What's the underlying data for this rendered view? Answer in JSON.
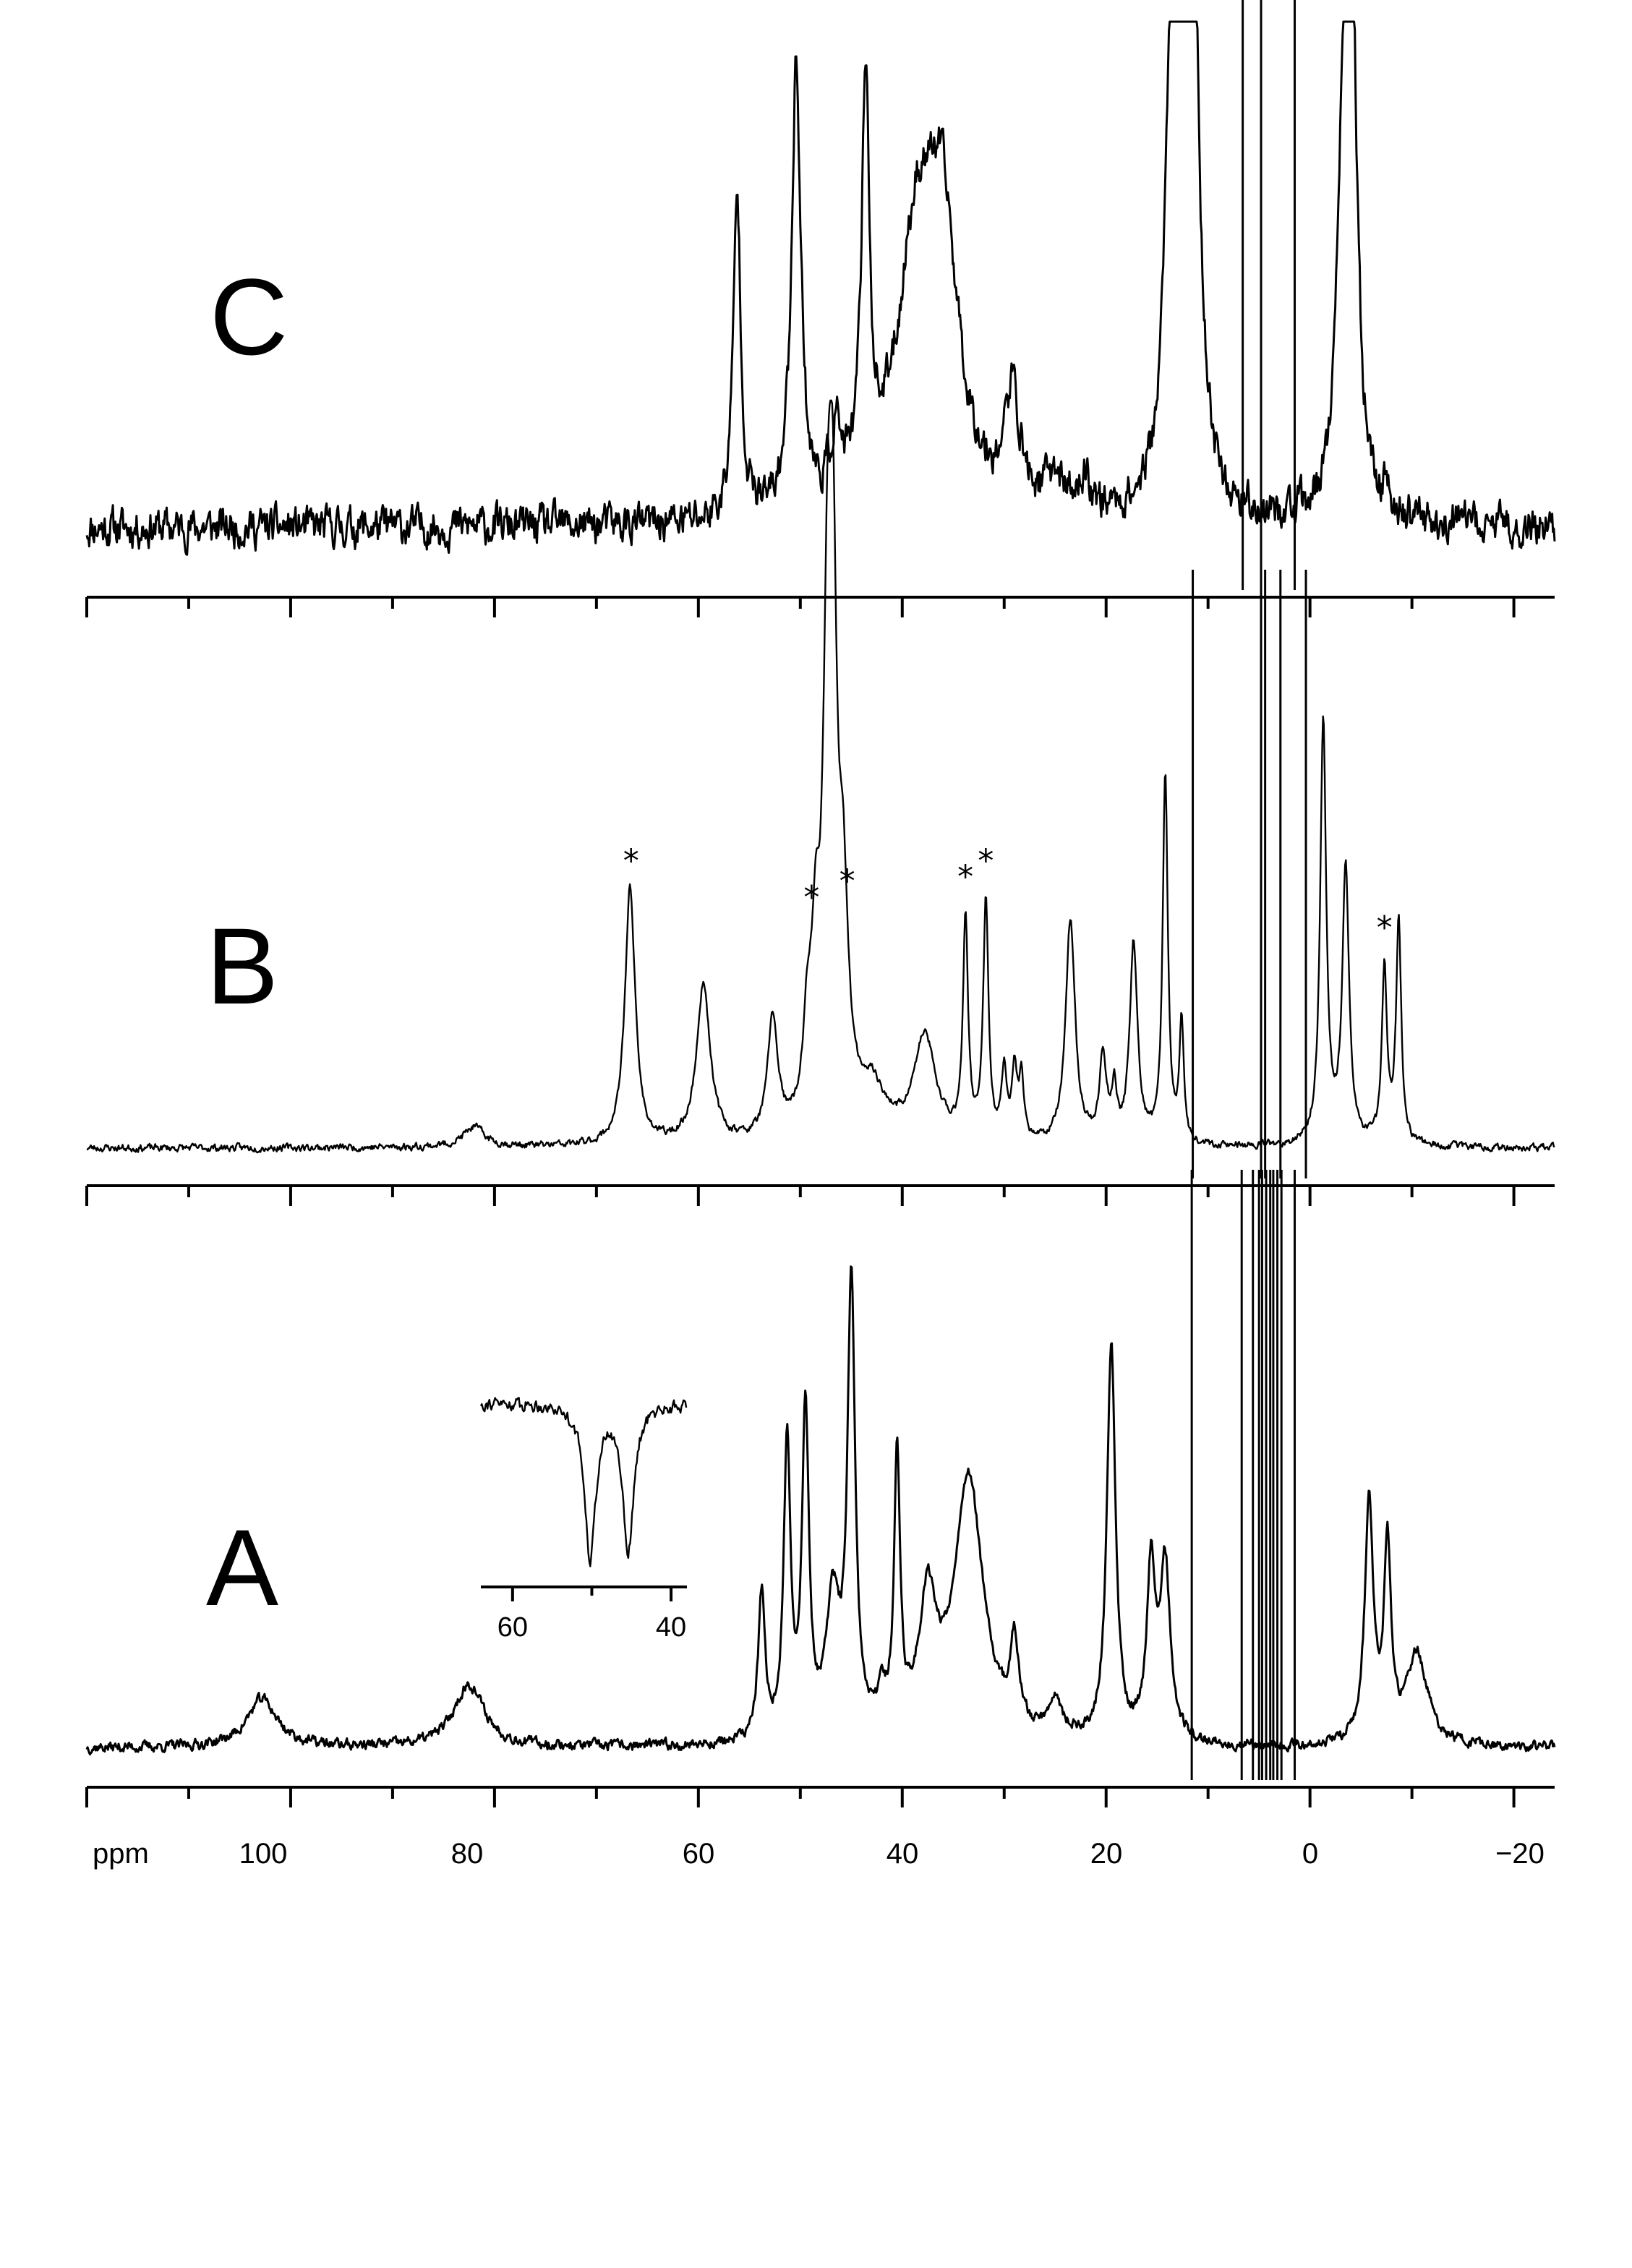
{
  "chart_data": [
    {
      "type": "line",
      "panel": "C",
      "x_unit": "ppm",
      "xlim": [
        120,
        -24
      ],
      "x_reversed": true,
      "axis_ticks_major": [
        120,
        100,
        80,
        60,
        40,
        20,
        0,
        -20
      ],
      "axis_ticks_minor": [
        110,
        90,
        70,
        50,
        30,
        10,
        -10
      ],
      "tick_labels_shown": false,
      "baseline_noise": 0.06,
      "baseline_dip": -0.02,
      "peaks": [
        {
          "ppm": 56.2,
          "height": 0.62,
          "width": 0.45
        },
        {
          "ppm": 50.4,
          "height": 0.87,
          "width": 0.55
        },
        {
          "ppm": 46.5,
          "height": 0.13,
          "width": 0.6
        },
        {
          "ppm": 43.6,
          "height": 0.79,
          "width": 0.45
        },
        {
          "ppm": 38.5,
          "height": 0.52,
          "width": 2.4
        },
        {
          "ppm": 36.0,
          "height": 0.45,
          "width": 1.8
        },
        {
          "ppm": 29.2,
          "height": 0.21,
          "width": 0.9
        },
        {
          "ppm": 25.0,
          "height": 0.07,
          "width": 1.0
        },
        {
          "ppm": 22.0,
          "height": 0.06,
          "width": 0.8
        },
        {
          "ppm": 13.7,
          "height": 0.62,
          "width": 0.6
        },
        {
          "ppm": 12.6,
          "height": 0.85,
          "width": 0.9
        },
        {
          "ppm": 11.5,
          "height": 0.96,
          "width": 0.7
        },
        {
          "ppm": -3.2,
          "height": 0.6,
          "width": 0.7
        },
        {
          "ppm": -4.1,
          "height": 0.98,
          "width": 0.6
        },
        {
          "ppm": -7.5,
          "height": 0.05,
          "width": 0.5
        }
      ],
      "truncated_lines_ppm": [
        6.6,
        4.8,
        1.5
      ],
      "annotations": []
    },
    {
      "type": "line",
      "panel": "B",
      "x_unit": "ppm",
      "xlim": [
        120,
        -24
      ],
      "x_reversed": true,
      "axis_ticks_major": [
        120,
        100,
        80,
        60,
        40,
        20,
        0,
        -20
      ],
      "axis_ticks_minor": [
        110,
        90,
        70,
        50,
        30,
        10,
        -10
      ],
      "tick_labels_shown": false,
      "baseline_noise": 0.012,
      "baseline_dip": -0.01,
      "peaks": [
        {
          "ppm": 82.0,
          "height": 0.04,
          "width": 1.3
        },
        {
          "ppm": 66.7,
          "height": 0.52,
          "width": 0.6
        },
        {
          "ppm": 59.5,
          "height": 0.32,
          "width": 0.8
        },
        {
          "ppm": 52.7,
          "height": 0.24,
          "width": 0.6
        },
        {
          "ppm": 49.3,
          "height": 0.17,
          "width": 0.5
        },
        {
          "ppm": 48.5,
          "height": 0.28,
          "width": 0.5
        },
        {
          "ppm": 47.3,
          "height": 0.93,
          "width": 0.55
        },
        {
          "ppm": 46.8,
          "height": 0.78,
          "width": 0.45
        },
        {
          "ppm": 45.8,
          "height": 0.4,
          "width": 0.6
        },
        {
          "ppm": 43.0,
          "height": 0.1,
          "width": 1.6
        },
        {
          "ppm": 37.8,
          "height": 0.21,
          "width": 1.3
        },
        {
          "ppm": 33.8,
          "height": 0.44,
          "width": 0.3
        },
        {
          "ppm": 31.8,
          "height": 0.48,
          "width": 0.3
        },
        {
          "ppm": 30.0,
          "height": 0.13,
          "width": 0.3
        },
        {
          "ppm": 29.0,
          "height": 0.14,
          "width": 0.3
        },
        {
          "ppm": 28.3,
          "height": 0.12,
          "width": 0.3
        },
        {
          "ppm": 23.5,
          "height": 0.45,
          "width": 0.55
        },
        {
          "ppm": 20.3,
          "height": 0.17,
          "width": 0.4
        },
        {
          "ppm": 19.2,
          "height": 0.1,
          "width": 0.3
        },
        {
          "ppm": 17.3,
          "height": 0.4,
          "width": 0.45
        },
        {
          "ppm": 14.2,
          "height": 0.74,
          "width": 0.3
        },
        {
          "ppm": 12.6,
          "height": 0.25,
          "width": 0.25
        },
        {
          "ppm": -1.3,
          "height": 0.85,
          "width": 0.35
        },
        {
          "ppm": -3.5,
          "height": 0.55,
          "width": 0.4
        },
        {
          "ppm": -7.3,
          "height": 0.35,
          "width": 0.3
        },
        {
          "ppm": -8.7,
          "height": 0.45,
          "width": 0.3
        }
      ],
      "truncated_lines_ppm": [
        11.5,
        4.8,
        4.4,
        2.9,
        0.4
      ],
      "annotations": [
        {
          "text": "*",
          "ppm": 66.6
        },
        {
          "text": "*",
          "ppm": 48.9
        },
        {
          "text": "*",
          "ppm": 45.4
        },
        {
          "text": "*",
          "ppm": 33.8
        },
        {
          "text": "*",
          "ppm": 31.8
        },
        {
          "text": "*",
          "ppm": -7.3
        }
      ]
    },
    {
      "type": "line",
      "panel": "A",
      "x_unit": "ppm",
      "xlim": [
        120,
        -24
      ],
      "x_reversed": true,
      "axis_ticks_major": [
        120,
        100,
        80,
        60,
        40,
        20,
        0,
        -20
      ],
      "axis_ticks_minor": [
        110,
        90,
        70,
        50,
        30,
        10,
        -10
      ],
      "tick_labels_shown": true,
      "baseline_noise": 0.018,
      "baseline_dip": -0.02,
      "peaks": [
        {
          "ppm": 102.8,
          "height": 0.1,
          "width": 1.8
        },
        {
          "ppm": 82.5,
          "height": 0.13,
          "width": 1.8
        },
        {
          "ppm": 53.8,
          "height": 0.3,
          "width": 0.4
        },
        {
          "ppm": 51.3,
          "height": 0.6,
          "width": 0.4
        },
        {
          "ppm": 49.5,
          "height": 0.68,
          "width": 0.4
        },
        {
          "ppm": 46.8,
          "height": 0.27,
          "width": 0.8
        },
        {
          "ppm": 45.0,
          "height": 0.92,
          "width": 0.45
        },
        {
          "ppm": 42.0,
          "height": 0.08,
          "width": 0.4
        },
        {
          "ppm": 40.5,
          "height": 0.56,
          "width": 0.35
        },
        {
          "ppm": 37.5,
          "height": 0.27,
          "width": 1.0
        },
        {
          "ppm": 33.5,
          "height": 0.55,
          "width": 1.7
        },
        {
          "ppm": 29.0,
          "height": 0.17,
          "width": 0.5
        },
        {
          "ppm": 25.0,
          "height": 0.08,
          "width": 0.8
        },
        {
          "ppm": 19.5,
          "height": 0.82,
          "width": 0.5
        },
        {
          "ppm": 15.6,
          "height": 0.35,
          "width": 0.5
        },
        {
          "ppm": 14.2,
          "height": 0.36,
          "width": 0.6
        },
        {
          "ppm": -5.8,
          "height": 0.5,
          "width": 0.5
        },
        {
          "ppm": -7.6,
          "height": 0.4,
          "width": 0.4
        },
        {
          "ppm": -10.5,
          "height": 0.19,
          "width": 1.2
        }
      ],
      "truncated_lines_ppm": [
        11.6,
        6.7,
        5.6,
        5.0,
        4.7,
        4.3,
        3.9,
        3.6,
        3.2,
        2.8,
        1.5
      ],
      "annotations": [],
      "inset": {
        "xlim": [
          64,
          38
        ],
        "ticks_major": [
          60,
          40
        ],
        "ticks_minor": [
          50
        ],
        "tick_labels": [
          "60",
          "40"
        ],
        "baseline_noise": 0.06,
        "negative_peaks": [
          {
            "ppm": 50.2,
            "depth": 1.0,
            "width": 0.5
          },
          {
            "ppm": 45.4,
            "depth": 0.95,
            "width": 0.5
          }
        ]
      }
    }
  ],
  "panels": {
    "C": {
      "label": "C"
    },
    "B": {
      "label": "B"
    },
    "A": {
      "label": "A"
    }
  },
  "axis": {
    "unit_label": "ppm",
    "tick_labels": [
      "100",
      "80",
      "60",
      "40",
      "20",
      "0",
      "−20"
    ]
  }
}
